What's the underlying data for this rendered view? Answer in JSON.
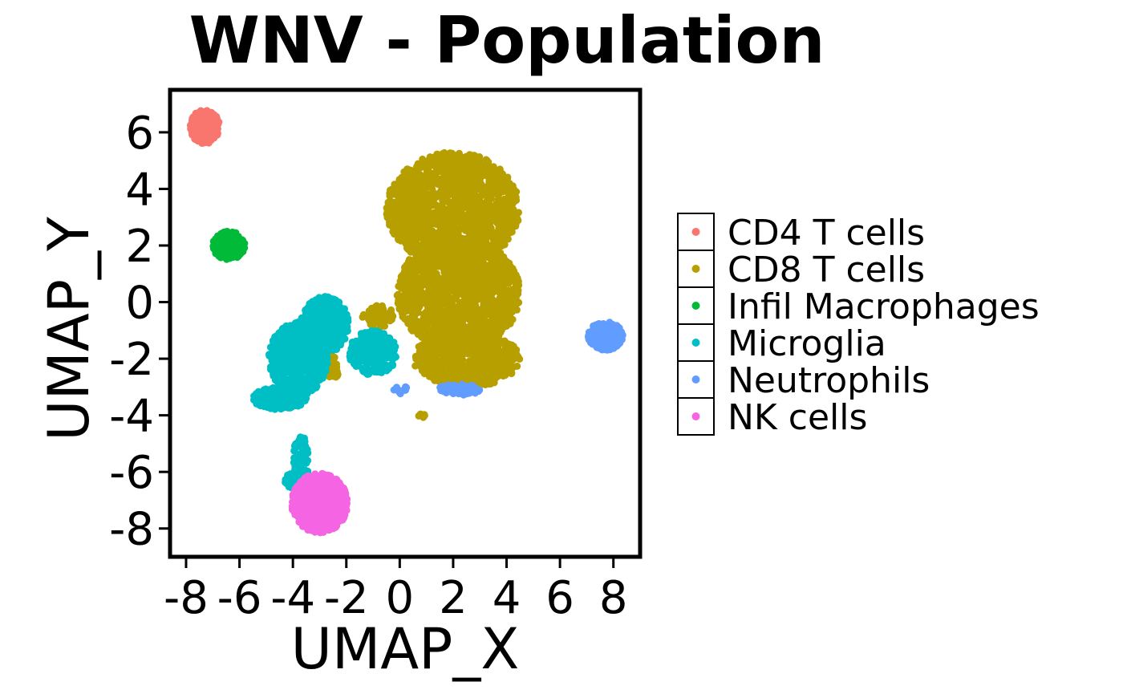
{
  "chart_data": {
    "type": "scatter",
    "title": "WNV - Population",
    "xlabel": "UMAP_X",
    "ylabel": "UMAP_Y",
    "xlim": [
      -8.6,
      9.0
    ],
    "ylim": [
      -9.0,
      7.5
    ],
    "x_ticks": [
      "-8",
      "-6",
      "-4",
      "-2",
      "0",
      "2",
      "4",
      "6",
      "8"
    ],
    "y_ticks": [
      "6",
      "4",
      "2",
      "0",
      "-2",
      "-4",
      "-6",
      "-8"
    ],
    "grid": false,
    "legend_position": "right",
    "series": [
      {
        "name": "CD4 T cells",
        "color": "#F8766D",
        "clusters": [
          {
            "cx": -7.3,
            "cy": 6.2,
            "rx": 0.55,
            "ry": 0.6,
            "n": 220
          }
        ]
      },
      {
        "name": "CD8 T cells",
        "color": "#B79F00",
        "clusters": [
          {
            "cx": 2.0,
            "cy": 3.3,
            "rx": 2.5,
            "ry": 2.0,
            "n": 1500
          },
          {
            "cx": 2.2,
            "cy": 0.3,
            "rx": 2.3,
            "ry": 2.0,
            "n": 1400
          },
          {
            "cx": 2.5,
            "cy": -2.0,
            "rx": 2.0,
            "ry": 1.0,
            "n": 700
          },
          {
            "cx": -2.5,
            "cy": -2.3,
            "rx": 0.25,
            "ry": 0.4,
            "n": 40
          },
          {
            "cx": 0.8,
            "cy": -4.0,
            "rx": 0.15,
            "ry": 0.1,
            "n": 8
          },
          {
            "cx": -0.8,
            "cy": -0.5,
            "rx": 0.6,
            "ry": 0.4,
            "n": 60
          }
        ]
      },
      {
        "name": "Infil Macrophages",
        "color": "#00BA38",
        "clusters": [
          {
            "cx": -6.4,
            "cy": 2.0,
            "rx": 0.6,
            "ry": 0.5,
            "n": 200
          }
        ]
      },
      {
        "name": "Microglia",
        "color": "#00BFC4",
        "clusters": [
          {
            "cx": -3.8,
            "cy": -2.0,
            "rx": 1.1,
            "ry": 1.3,
            "n": 700
          },
          {
            "cx": -2.8,
            "cy": -0.8,
            "rx": 0.9,
            "ry": 1.0,
            "n": 400
          },
          {
            "cx": -4.5,
            "cy": -3.4,
            "rx": 1.0,
            "ry": 0.4,
            "n": 200
          },
          {
            "cx": -1.0,
            "cy": -1.8,
            "rx": 0.9,
            "ry": 0.8,
            "n": 250
          },
          {
            "cx": -3.7,
            "cy": -5.6,
            "rx": 0.3,
            "ry": 0.9,
            "n": 90
          },
          {
            "cx": -3.9,
            "cy": -6.3,
            "rx": 0.4,
            "ry": 0.3,
            "n": 60
          }
        ]
      },
      {
        "name": "Neutrophils",
        "color": "#619CFF",
        "clusters": [
          {
            "cx": 7.7,
            "cy": -1.2,
            "rx": 0.65,
            "ry": 0.5,
            "n": 280
          },
          {
            "cx": 2.2,
            "cy": -3.1,
            "rx": 0.8,
            "ry": 0.2,
            "n": 60
          },
          {
            "cx": 0.0,
            "cy": -3.1,
            "rx": 0.3,
            "ry": 0.15,
            "n": 15
          }
        ]
      },
      {
        "name": "NK cells",
        "color": "#F564E3",
        "clusters": [
          {
            "cx": -3.0,
            "cy": -7.1,
            "rx": 1.05,
            "ry": 1.05,
            "n": 900
          }
        ]
      }
    ]
  }
}
